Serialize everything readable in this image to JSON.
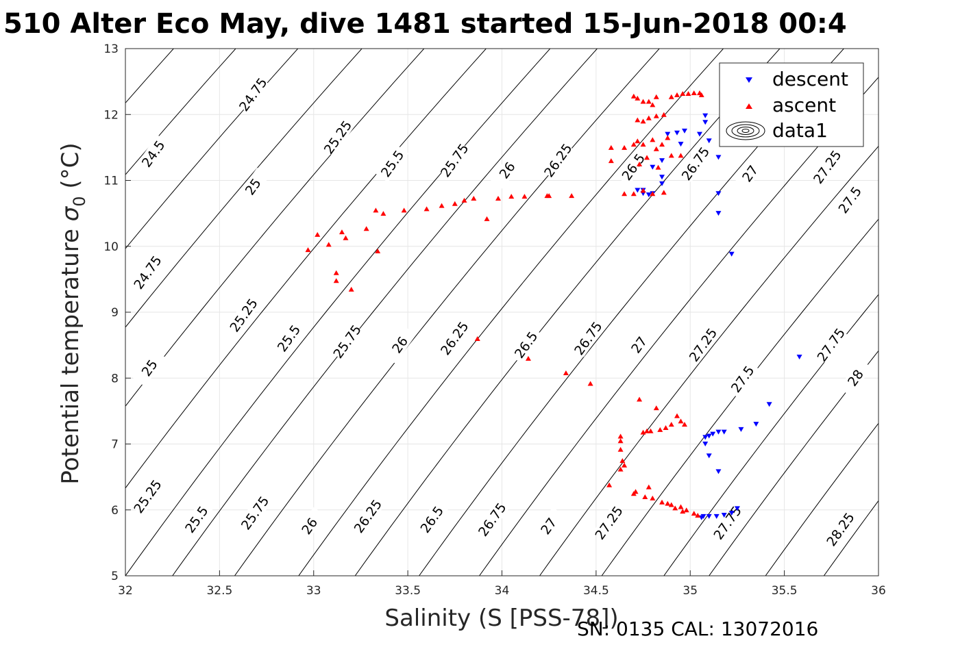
{
  "chart_data": {
    "type": "scatter",
    "title": "510 Alter Eco May, dive 1481 started 15-Jun-2018 00:4",
    "xlabel": "Salinity (S [PSS-78])",
    "ylabel": "Potential temperature σ0 (°C)",
    "ylabel_main": "Potential temperature ",
    "ylabel_sigma": "σ",
    "ylabel_sub": "0",
    "ylabel_unit": " (°C)",
    "xlim": [
      32,
      36
    ],
    "ylim": [
      5,
      13
    ],
    "xticks": [
      32,
      32.5,
      33,
      33.5,
      34,
      34.5,
      35,
      35.5,
      36
    ],
    "xtick_labels": [
      "32",
      "32.5",
      "33",
      "33.5",
      "34",
      "34.5",
      "35",
      "35.5",
      "36"
    ],
    "yticks": [
      5,
      6,
      7,
      8,
      9,
      10,
      11,
      12,
      13
    ],
    "ytick_labels": [
      "5",
      "6",
      "7",
      "8",
      "9",
      "10",
      "11",
      "12",
      "13"
    ],
    "grid": true,
    "legend_position": "top-right",
    "legend": [
      "descent",
      "ascent",
      "data1"
    ],
    "footer": "SN: 0135  CAL: 13072016",
    "colors": {
      "descent": "#0000ff",
      "ascent": "#ff0000",
      "contour": "#000000",
      "grid": "#e6e6e6"
    },
    "contours": {
      "slope_salinity_per_degC": 0.25,
      "levels": [
        24.5,
        24.75,
        25,
        25.25,
        25.5,
        25.75,
        26,
        26.25,
        26.5,
        26.75,
        27,
        27.25,
        27.5,
        27.75,
        28,
        28.25
      ],
      "lines": [
        {
          "s_at_t5": 30.0,
          "value": 24.75
        },
        {
          "s_at_t5": 30.33,
          "value": 25
        },
        {
          "s_at_t5": 30.66,
          "value": 25.25
        },
        {
          "s_at_t5": 31.0,
          "value": 24.5
        },
        {
          "s_at_t5": 31.33,
          "value": 24.75
        },
        {
          "s_at_t5": 31.66,
          "value": 25
        },
        {
          "s_at_t5": 32.0,
          "value": 25.25
        },
        {
          "s_at_t5": 32.25,
          "value": 25.5
        },
        {
          "s_at_t5": 32.58,
          "value": 25.75
        },
        {
          "s_at_t5": 32.92,
          "value": 26
        },
        {
          "s_at_t5": 33.22,
          "value": 26.25
        },
        {
          "s_at_t5": 33.56,
          "value": 26.5
        },
        {
          "s_at_t5": 33.88,
          "value": 26.75
        },
        {
          "s_at_t5": 34.2,
          "value": 27
        },
        {
          "s_at_t5": 34.53,
          "value": 27.25
        },
        {
          "s_at_t5": 34.86,
          "value": 27.5
        },
        {
          "s_at_t5": 35.1,
          "value": 27.75
        },
        {
          "s_at_t5": 35.4,
          "value": 28
        },
        {
          "s_at_t5": 35.71,
          "value": 28.25
        }
      ],
      "labels": [
        {
          "s": 32.15,
          "t": 11.4,
          "text": "24.5"
        },
        {
          "s": 32.68,
          "t": 12.3,
          "text": "24.75"
        },
        {
          "s": 32.12,
          "t": 9.6,
          "text": "24.75"
        },
        {
          "s": 32.68,
          "t": 10.9,
          "text": "25"
        },
        {
          "s": 32.13,
          "t": 8.15,
          "text": "25"
        },
        {
          "s": 33.13,
          "t": 11.65,
          "text": "25.25"
        },
        {
          "s": 32.63,
          "t": 8.95,
          "text": "25.25"
        },
        {
          "s": 32.12,
          "t": 6.2,
          "text": "25.25"
        },
        {
          "s": 33.42,
          "t": 11.25,
          "text": "25.5"
        },
        {
          "s": 32.87,
          "t": 8.6,
          "text": "25.5"
        },
        {
          "s": 32.38,
          "t": 5.85,
          "text": "25.5"
        },
        {
          "s": 33.75,
          "t": 11.3,
          "text": "25.75"
        },
        {
          "s": 33.18,
          "t": 8.55,
          "text": "25.75"
        },
        {
          "s": 32.69,
          "t": 5.95,
          "text": "25.75"
        },
        {
          "s": 34.03,
          "t": 11.15,
          "text": "26"
        },
        {
          "s": 33.46,
          "t": 8.5,
          "text": "26"
        },
        {
          "s": 32.98,
          "t": 5.75,
          "text": "26"
        },
        {
          "s": 34.3,
          "t": 11.3,
          "text": "26.25"
        },
        {
          "s": 33.75,
          "t": 8.6,
          "text": "26.25"
        },
        {
          "s": 33.29,
          "t": 5.9,
          "text": "26.25"
        },
        {
          "s": 34.7,
          "t": 11.2,
          "text": "26.5"
        },
        {
          "s": 34.13,
          "t": 8.5,
          "text": "26.5"
        },
        {
          "s": 33.63,
          "t": 5.85,
          "text": "26.5"
        },
        {
          "s": 35.03,
          "t": 11.25,
          "text": "26.75"
        },
        {
          "s": 34.46,
          "t": 8.6,
          "text": "26.75"
        },
        {
          "s": 33.95,
          "t": 5.85,
          "text": "26.75"
        },
        {
          "s": 35.32,
          "t": 11.1,
          "text": "27"
        },
        {
          "s": 34.73,
          "t": 8.5,
          "text": "27"
        },
        {
          "s": 34.25,
          "t": 5.75,
          "text": "27"
        },
        {
          "s": 35.73,
          "t": 11.2,
          "text": "27.25"
        },
        {
          "s": 35.07,
          "t": 8.5,
          "text": "27.25"
        },
        {
          "s": 34.57,
          "t": 5.8,
          "text": "27.25"
        },
        {
          "s": 35.85,
          "t": 10.7,
          "text": "27.5"
        },
        {
          "s": 35.28,
          "t": 7.98,
          "text": "27.5"
        },
        {
          "s": 35.75,
          "t": 8.5,
          "text": "27.75"
        },
        {
          "s": 35.2,
          "t": 5.8,
          "text": "27.75"
        },
        {
          "s": 35.88,
          "t": 8.0,
          "text": "28"
        },
        {
          "s": 35.8,
          "t": 5.7,
          "text": "28.25"
        }
      ]
    },
    "series": [
      {
        "name": "descent",
        "marker": "triangle-down",
        "points": [
          [
            35.08,
            11.98
          ],
          [
            35.08,
            11.88
          ],
          [
            35.1,
            11.6
          ],
          [
            35.15,
            11.35
          ],
          [
            35.05,
            11.7
          ],
          [
            34.95,
            11.55
          ],
          [
            34.93,
            11.72
          ],
          [
            34.97,
            11.75
          ],
          [
            34.88,
            11.7
          ],
          [
            34.85,
            11.3
          ],
          [
            34.8,
            11.2
          ],
          [
            34.85,
            11.05
          ],
          [
            34.75,
            10.85
          ],
          [
            34.72,
            10.85
          ],
          [
            34.78,
            10.78
          ],
          [
            34.85,
            10.95
          ],
          [
            34.75,
            10.8
          ],
          [
            34.8,
            10.8
          ],
          [
            35.15,
            10.8
          ],
          [
            35.15,
            10.5
          ],
          [
            35.22,
            9.88
          ],
          [
            35.58,
            8.32
          ],
          [
            35.42,
            7.6
          ],
          [
            35.35,
            7.3
          ],
          [
            35.27,
            7.22
          ],
          [
            35.18,
            7.18
          ],
          [
            35.15,
            7.18
          ],
          [
            35.12,
            7.15
          ],
          [
            35.1,
            7.12
          ],
          [
            35.08,
            7.1
          ],
          [
            35.08,
            7.0
          ],
          [
            35.1,
            6.82
          ],
          [
            35.15,
            6.58
          ],
          [
            35.07,
            5.9
          ],
          [
            35.1,
            5.9
          ],
          [
            35.14,
            5.9
          ],
          [
            35.18,
            5.92
          ],
          [
            35.22,
            5.95
          ],
          [
            35.25,
            6.02
          ],
          [
            35.06,
            5.88
          ]
        ]
      },
      {
        "name": "ascent",
        "marker": "triangle-up",
        "points": [
          [
            32.97,
            9.95
          ],
          [
            33.02,
            10.18
          ],
          [
            33.08,
            10.03
          ],
          [
            33.12,
            9.6
          ],
          [
            33.12,
            9.48
          ],
          [
            33.15,
            10.22
          ],
          [
            33.17,
            10.13
          ],
          [
            33.2,
            9.35
          ],
          [
            33.28,
            10.27
          ],
          [
            33.33,
            10.55
          ],
          [
            33.34,
            9.93
          ],
          [
            33.37,
            10.5
          ],
          [
            33.48,
            10.55
          ],
          [
            33.6,
            10.57
          ],
          [
            33.68,
            10.62
          ],
          [
            33.75,
            10.65
          ],
          [
            33.8,
            10.7
          ],
          [
            33.85,
            10.73
          ],
          [
            33.87,
            8.6
          ],
          [
            33.92,
            10.42
          ],
          [
            33.98,
            10.73
          ],
          [
            34.05,
            10.76
          ],
          [
            34.12,
            10.76
          ],
          [
            34.14,
            8.3
          ],
          [
            34.24,
            10.77
          ],
          [
            34.25,
            10.77
          ],
          [
            34.34,
            8.08
          ],
          [
            34.37,
            10.77
          ],
          [
            34.47,
            7.92
          ],
          [
            34.58,
            11.5
          ],
          [
            34.58,
            11.3
          ],
          [
            34.65,
            11.5
          ],
          [
            34.65,
            10.8
          ],
          [
            34.7,
            11.55
          ],
          [
            34.7,
            12.28
          ],
          [
            34.72,
            12.25
          ],
          [
            34.75,
            12.2
          ],
          [
            34.78,
            12.2
          ],
          [
            34.8,
            12.15
          ],
          [
            34.82,
            12.27
          ],
          [
            34.72,
            11.92
          ],
          [
            34.75,
            11.9
          ],
          [
            34.78,
            11.95
          ],
          [
            34.82,
            11.98
          ],
          [
            34.86,
            12.0
          ],
          [
            34.9,
            12.27
          ],
          [
            34.93,
            12.3
          ],
          [
            34.96,
            12.32
          ],
          [
            34.99,
            12.32
          ],
          [
            35.02,
            12.33
          ],
          [
            35.05,
            12.33
          ],
          [
            35.06,
            12.3
          ],
          [
            34.72,
            11.6
          ],
          [
            34.75,
            11.55
          ],
          [
            34.8,
            11.62
          ],
          [
            34.82,
            11.48
          ],
          [
            34.85,
            11.55
          ],
          [
            34.88,
            11.65
          ],
          [
            34.9,
            11.38
          ],
          [
            34.95,
            11.38
          ],
          [
            34.73,
            11.25
          ],
          [
            34.77,
            11.35
          ],
          [
            34.83,
            11.2
          ],
          [
            34.8,
            10.8
          ],
          [
            34.86,
            10.82
          ],
          [
            34.7,
            10.8
          ],
          [
            34.75,
            10.85
          ],
          [
            34.73,
            7.68
          ],
          [
            34.82,
            7.55
          ],
          [
            34.77,
            7.2
          ],
          [
            34.75,
            7.18
          ],
          [
            34.79,
            7.2
          ],
          [
            34.84,
            7.22
          ],
          [
            34.87,
            7.25
          ],
          [
            34.9,
            7.3
          ],
          [
            34.93,
            7.43
          ],
          [
            34.95,
            7.35
          ],
          [
            34.97,
            7.3
          ],
          [
            34.63,
            7.12
          ],
          [
            34.63,
            7.05
          ],
          [
            34.63,
            6.92
          ],
          [
            34.64,
            6.75
          ],
          [
            34.65,
            6.68
          ],
          [
            34.63,
            6.62
          ],
          [
            34.57,
            6.38
          ],
          [
            34.71,
            6.28
          ],
          [
            34.76,
            6.2
          ],
          [
            34.8,
            6.18
          ],
          [
            34.85,
            6.12
          ],
          [
            34.9,
            6.08
          ],
          [
            34.95,
            6.05
          ],
          [
            34.98,
            6.0
          ],
          [
            35.02,
            5.95
          ],
          [
            35.04,
            5.92
          ],
          [
            34.7,
            6.25
          ],
          [
            34.78,
            6.35
          ],
          [
            34.88,
            6.1
          ],
          [
            34.92,
            6.03
          ],
          [
            34.96,
            5.98
          ]
        ]
      }
    ]
  }
}
